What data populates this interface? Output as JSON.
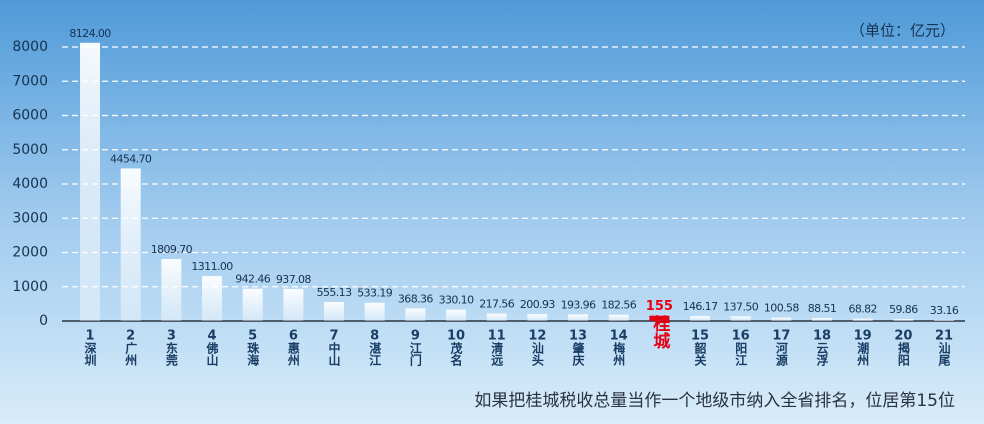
{
  "chart_data": {
    "type": "bar",
    "unit_note": "（单位：亿元）",
    "footnote": "如果把桂城税收总量当作一个地级市纳入全省排名，位居第15位",
    "categories": [
      "深圳",
      "广州",
      "东莞",
      "佛山",
      "珠海",
      "惠州",
      "中山",
      "湛江",
      "江门",
      "茂名",
      "清远",
      "汕头",
      "肇庆",
      "梅州",
      "桂城",
      "韶关",
      "阳江",
      "河源",
      "云浮",
      "潮州",
      "揭阳",
      "汕尾"
    ],
    "ranks": [
      1,
      2,
      3,
      4,
      5,
      6,
      7,
      8,
      9,
      10,
      11,
      12,
      13,
      14,
      null,
      15,
      16,
      17,
      18,
      19,
      20,
      21
    ],
    "values": [
      8124.0,
      4454.7,
      1809.7,
      1311.0,
      942.46,
      937.08,
      555.13,
      533.19,
      368.36,
      330.1,
      217.56,
      200.93,
      193.96,
      182.56,
      155,
      146.17,
      137.5,
      100.58,
      88.51,
      68.82,
      59.86,
      33.16
    ],
    "value_labels": [
      "8124.00",
      "4454.70",
      "1809.70",
      "1311.00",
      "942.46",
      "937.08",
      "555.13",
      "533.19",
      "368.36",
      "330.10",
      "217.56",
      "200.93",
      "193.96",
      "182.56",
      "155",
      "146.17",
      "137.50",
      "100.58",
      "88.51",
      "68.82",
      "59.86",
      "33.16"
    ],
    "color": "#ffffff",
    "highlight_index": 14,
    "highlight_color": "#e60012",
    "ylim": [
      0,
      8000
    ],
    "yticks": [
      0,
      1000,
      2000,
      3000,
      4000,
      5000,
      6000,
      7000,
      8000
    ],
    "grid": true
  }
}
